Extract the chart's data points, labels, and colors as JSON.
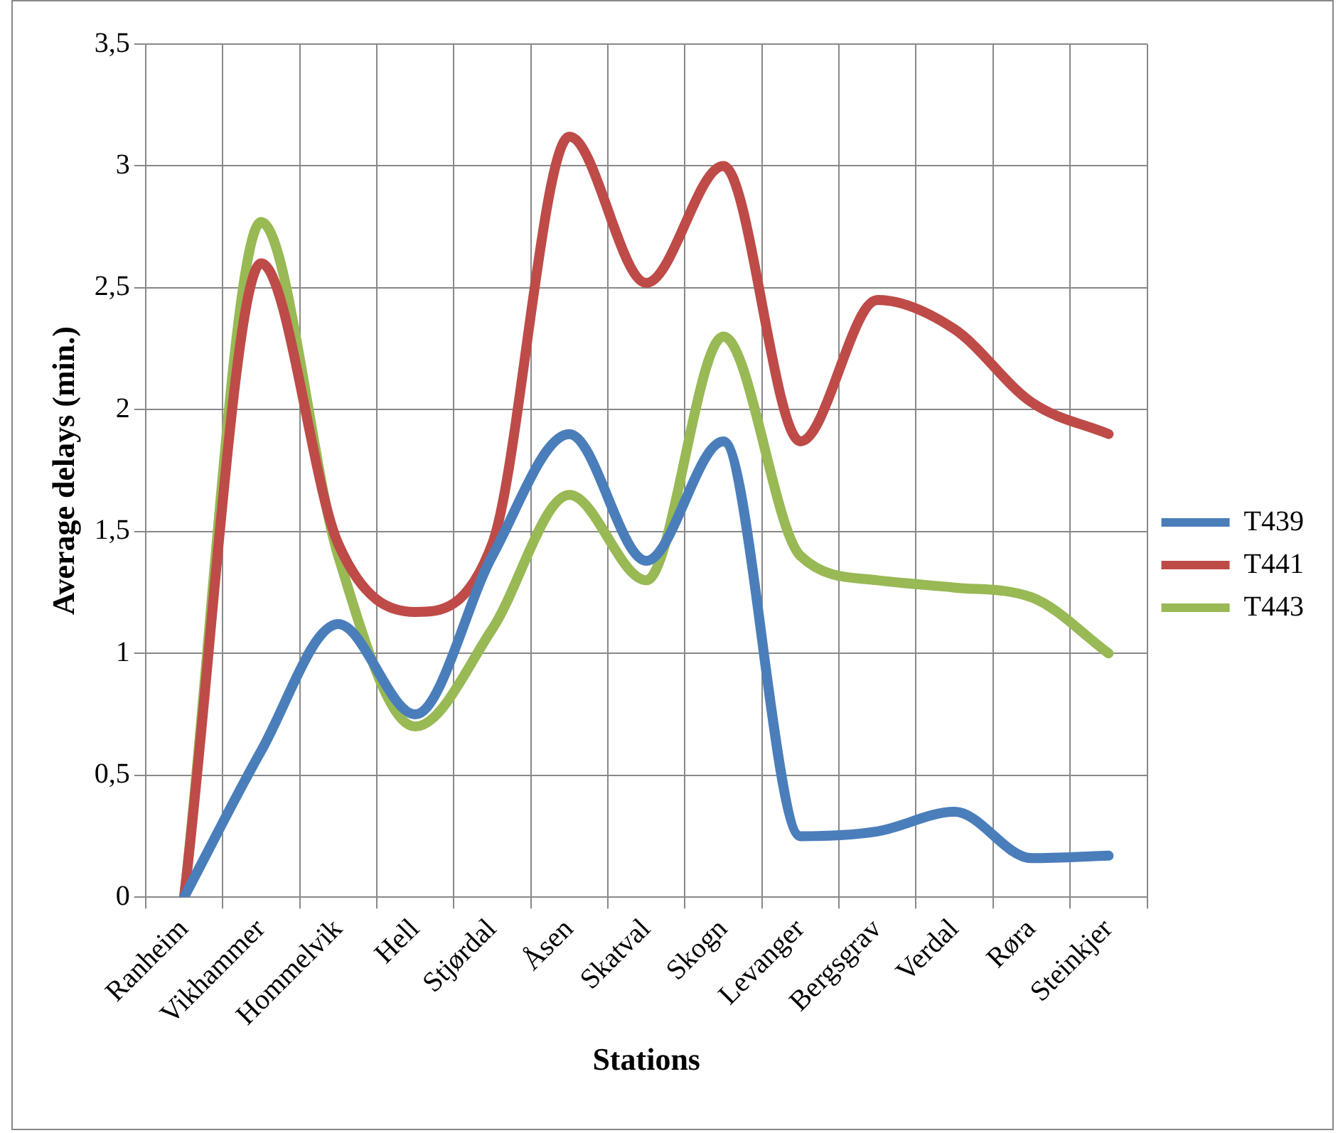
{
  "chart_data": {
    "type": "line",
    "xlabel": "Stations",
    "ylabel": "Average delays (min.)",
    "categories": [
      "Ranheim",
      "Vikhammer",
      "Hommelvik",
      "Hell",
      "Stjørdal",
      "Åsen",
      "Skatval",
      "Skogn",
      "Levanger",
      "Bergsgrav",
      "Verdal",
      "Røra",
      "Steinkjer"
    ],
    "series": [
      {
        "name": "T439",
        "color": "#4a7ebb",
        "values": [
          0,
          0.6,
          1.12,
          0.75,
          1.4,
          1.9,
          1.38,
          1.87,
          0.25,
          0.27,
          0.35,
          0.16,
          0.17
        ]
      },
      {
        "name": "T441",
        "color": "#be4b48",
        "values": [
          0,
          2.6,
          1.45,
          1.17,
          1.45,
          3.12,
          2.52,
          3.0,
          1.87,
          2.45,
          2.33,
          2.03,
          1.9
        ]
      },
      {
        "name": "T443",
        "color": "#98b954",
        "values": [
          0,
          2.77,
          1.4,
          0.7,
          1.1,
          1.65,
          1.3,
          2.3,
          1.4,
          1.3,
          1.27,
          1.23,
          1.0
        ]
      }
    ],
    "ylim": [
      0,
      3.5
    ],
    "yticks": [
      0,
      {
        "value": 0.5,
        "label": "0,5"
      },
      1,
      {
        "value": 1.5,
        "label": "1,5"
      },
      2,
      {
        "value": 2.5,
        "label": "2,5"
      },
      3,
      {
        "value": 3.5,
        "label": "3,5"
      }
    ],
    "grid": true,
    "legend": "right",
    "marker": "none",
    "line_style": "solid"
  }
}
